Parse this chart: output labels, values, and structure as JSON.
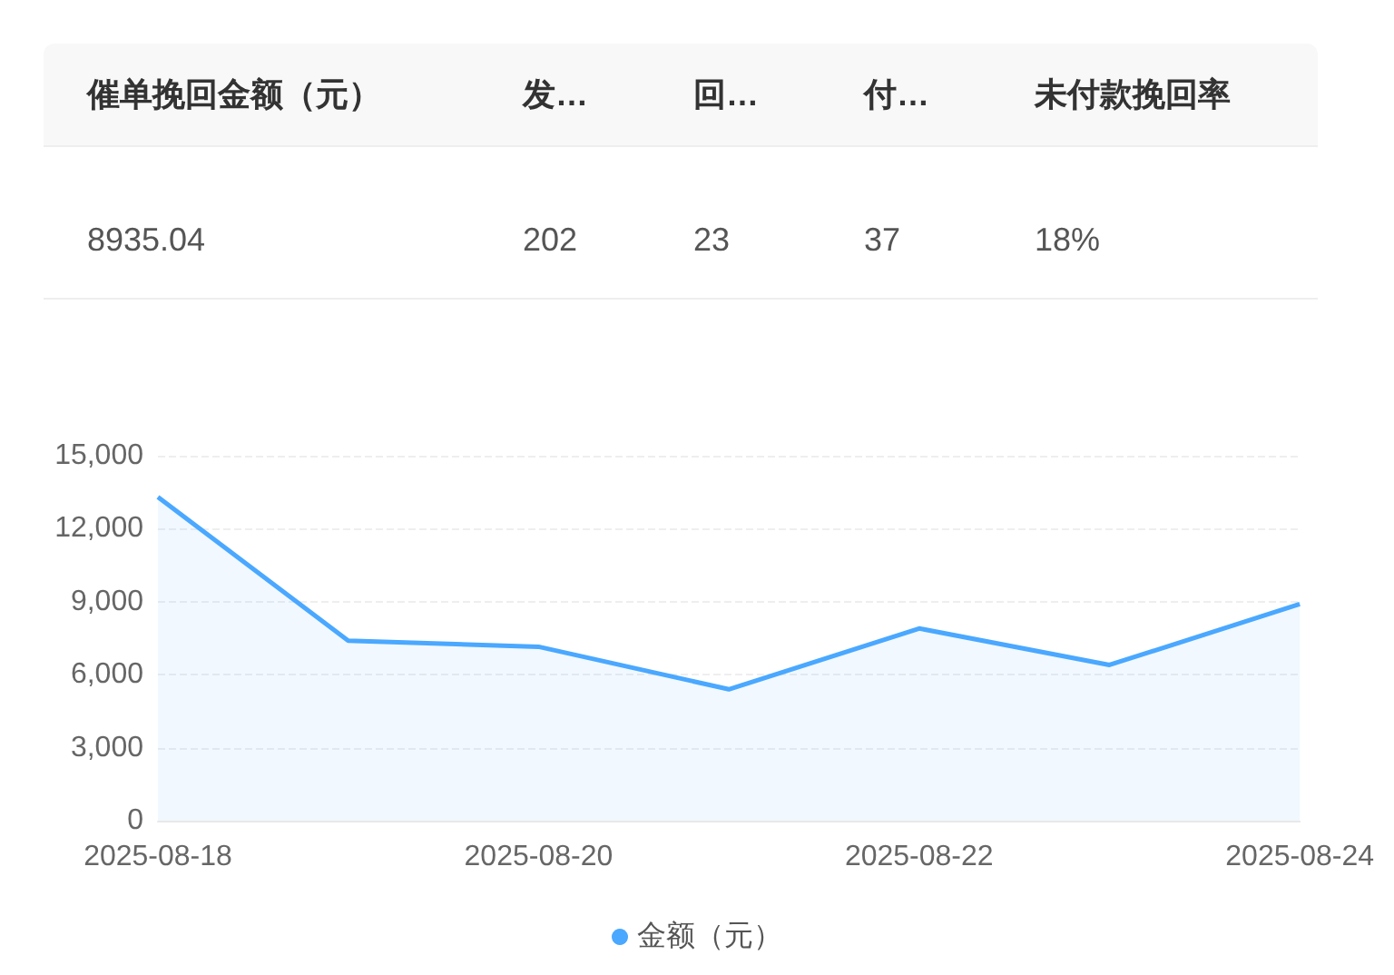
{
  "chart_data": [
    {
      "type": "other",
      "categories": [
        "催单挽回金额（元）",
        "发…",
        "回…",
        "付…",
        "未付款挽回率"
      ],
      "value_labels": [
        "8935.04",
        "202",
        "23",
        "37",
        "18%"
      ]
    },
    {
      "type": "area",
      "categories": [
        "2025-08-18",
        null,
        "2025-08-20",
        null,
        "2025-08-22",
        null,
        "2025-08-24"
      ],
      "series": [
        {
          "name": "金额（元）",
          "color": "#4aa8ff",
          "values": [
            13300,
            7400,
            7150,
            5400,
            7900,
            6400,
            8900
          ]
        }
      ],
      "ylim": [
        0,
        15000
      ],
      "yticks": [
        0,
        {
          "value": 3000,
          "label": "3,000"
        },
        {
          "value": 6000,
          "label": "6,000"
        },
        {
          "value": 9000,
          "label": "9,000"
        },
        {
          "value": 12000,
          "label": "12,000"
        },
        {
          "value": 15000,
          "label": "15,000"
        }
      ],
      "grid": "y",
      "legend": "bottom",
      "marker": "none"
    }
  ]
}
